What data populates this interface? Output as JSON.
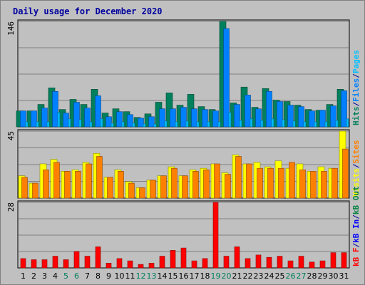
{
  "chart_data": {
    "title": "Daily usage for December 2020",
    "categories": [
      "1",
      "2",
      "3",
      "4",
      "5",
      "6",
      "7",
      "8",
      "9",
      "10",
      "11",
      "12",
      "13",
      "14",
      "15",
      "16",
      "17",
      "18",
      "19",
      "20",
      "21",
      "22",
      "23",
      "24",
      "25",
      "26",
      "27",
      "28",
      "29",
      "30",
      "31"
    ],
    "weekend_days": [
      "5",
      "6",
      "12",
      "13",
      "19",
      "20",
      "26",
      "27"
    ],
    "colors": {
      "hits": "#00805c",
      "files": "#0080ff",
      "pages": "#00c0ff",
      "visits": "#ffff00",
      "sites": "#ff8000",
      "kb_out": "#008040",
      "kb_in": "#0000ff",
      "kb_f": "#ff0000",
      "title": "#0000a0",
      "weekday_label": "#000000",
      "weekend_label": "#00805c",
      "panel_bg": "#c0c0c0",
      "grid": "#808080"
    },
    "panels": [
      {
        "type": "bar",
        "y_max_label": "146",
        "ylim": [
          0,
          146
        ],
        "legend": [
          {
            "label": "Hits",
            "color_key": "hits"
          },
          {
            "label": "/",
            "color_key": "slash"
          },
          {
            "label": "Files",
            "color_key": "files"
          },
          {
            "label": "/",
            "color_key": "slash"
          },
          {
            "label": "Pages",
            "color_key": "pages"
          }
        ],
        "series": [
          {
            "name": "Hits",
            "color_key": "hits",
            "values": [
              22,
              22,
              31,
              54,
              24,
              38,
              31,
              52,
              19,
              25,
              21,
              13,
              18,
              34,
              47,
              30,
              45,
              28,
              24,
              146,
              33,
              55,
              27,
              53,
              37,
              35,
              30,
              24,
              23,
              31,
              52
            ]
          },
          {
            "name": "Files",
            "color_key": "files",
            "values": [
              22,
              22,
              26,
              49,
              19,
              34,
              26,
              43,
              14,
              21,
              17,
              12,
              14,
              25,
              25,
              27,
              25,
              24,
              22,
              136,
              31,
              44,
              25,
              49,
              35,
              30,
              28,
              22,
              23,
              29,
              50
            ]
          },
          {
            "name": "Pages",
            "color_key": "pages",
            "values": [
              7,
              7,
              7,
              20,
              11,
              10,
              7,
              11,
              5,
              7,
              5,
              4,
              4,
              8,
              7,
              8,
              7,
              7,
              7,
              20,
              9,
              11,
              9,
              11,
              10,
              8,
              7,
              7,
              7,
              9,
              11
            ]
          }
        ]
      },
      {
        "type": "bar",
        "y_max_label": "45",
        "ylim": [
          0,
          45
        ],
        "legend": [
          {
            "label": "Visits",
            "color_key": "visits"
          },
          {
            "label": "/",
            "color_key": "slash"
          },
          {
            "label": "Sites",
            "color_key": "sites"
          }
        ],
        "series": [
          {
            "name": "Visits",
            "color_key": "visits",
            "values": [
              15,
              10,
              23,
              26,
              18,
              19,
              24,
              30,
              14,
              19,
              11,
              7,
              12,
              15,
              21,
              15,
              19,
              20,
              23,
              17,
              29,
              23,
              24,
              21,
              25,
              20,
              23,
              18,
              21,
              20,
              45
            ]
          },
          {
            "name": "Sites",
            "color_key": "sites",
            "values": [
              14,
              10,
              19,
              24,
              18,
              18,
              23,
              28,
              14,
              18,
              10,
              7,
              12,
              15,
              20,
              15,
              18,
              19,
              23,
              16,
              28,
              23,
              20,
              20,
              20,
              24,
              19,
              18,
              18,
              20,
              33
            ]
          }
        ]
      },
      {
        "type": "bar",
        "y_max_label": "28",
        "ylim": [
          0,
          28
        ],
        "legend": [
          {
            "label": "kB F",
            "color_key": "kb_f"
          },
          {
            "label": "/",
            "color_key": "slash"
          },
          {
            "label": "kB In",
            "color_key": "kb_in"
          },
          {
            "label": "/",
            "color_key": "slash"
          },
          {
            "label": "kB Out",
            "color_key": "kb_out"
          }
        ],
        "series": [
          {
            "name": "kB F",
            "color_key": "kb_f",
            "values": [
              4,
              3.5,
              3.5,
              5,
              3.5,
              7,
              5,
              9,
              2,
              4,
              3,
              1.5,
              2,
              5,
              7.5,
              8.5,
              3,
              4,
              28,
              5,
              9,
              4,
              5.5,
              4.5,
              5,
              3,
              5,
              2.5,
              3,
              6.5,
              6.5
            ]
          }
        ]
      }
    ]
  }
}
